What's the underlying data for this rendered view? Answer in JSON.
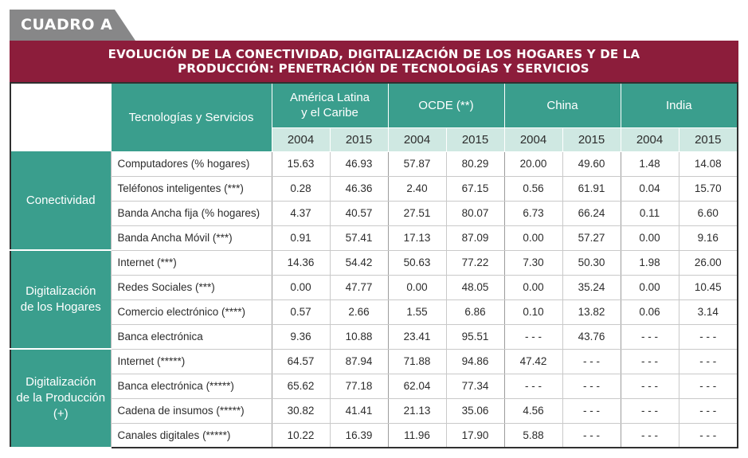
{
  "tag": "CUADRO A",
  "title": {
    "line1": "EVOLUCIÓN DE LA CONECTIVIDAD, DIGITALIZACIÓN DE LOS HOGARES Y DE LA",
    "line2": "PRODUCCIÓN: PENETRACIÓN DE TECNOLOGÍAS Y SERVICIOS"
  },
  "table": {
    "tech_header": "Tecnologías y Servicios",
    "regions": [
      {
        "line1": "América Latina",
        "line2": "y el Caribe"
      },
      {
        "line1": "OCDE (**)",
        "line2": ""
      },
      {
        "line1": "China",
        "line2": ""
      },
      {
        "line1": "India",
        "line2": ""
      }
    ],
    "years": [
      "2004",
      "2015",
      "2004",
      "2015",
      "2004",
      "2015",
      "2004",
      "2015"
    ],
    "groups": [
      {
        "label_lines": [
          "Conectividad"
        ],
        "rows": [
          {
            "name": "Computadores (% hogares)",
            "values": [
              "15.63",
              "46.93",
              "57.87",
              "80.29",
              "20.00",
              "49.60",
              "1.48",
              "14.08"
            ]
          },
          {
            "name": "Teléfonos inteligentes (***)",
            "values": [
              "0.28",
              "46.36",
              "2.40",
              "67.15",
              "0.56",
              "61.91",
              "0.04",
              "15.70"
            ]
          },
          {
            "name": "Banda Ancha fija (% hogares)",
            "values": [
              "4.37",
              "40.57",
              "27.51",
              "80.07",
              "6.73",
              "66.24",
              "0.11",
              "6.60"
            ]
          },
          {
            "name": "Banda Ancha Móvil (***)",
            "values": [
              "0.91",
              "57.41",
              "17.13",
              "87.09",
              "0.00",
              "57.27",
              "0.00",
              "9.16"
            ]
          }
        ]
      },
      {
        "label_lines": [
          "Digitalización",
          "de los Hogares"
        ],
        "rows": [
          {
            "name": "Internet (***)",
            "values": [
              "14.36",
              "54.42",
              "50.63",
              "77.22",
              "7.30",
              "50.30",
              "1.98",
              "26.00"
            ]
          },
          {
            "name": "Redes Sociales (***)",
            "values": [
              "0.00",
              "47.77",
              "0.00",
              "48.05",
              "0.00",
              "35.24",
              "0.00",
              "10.45"
            ]
          },
          {
            "name": "Comercio electrónico (****)",
            "values": [
              "0.57",
              "2.66",
              "1.55",
              "6.86",
              "0.10",
              "13.82",
              "0.06",
              "3.14"
            ]
          },
          {
            "name": "Banca electrónica",
            "values": [
              "9.36",
              "10.88",
              "23.41",
              "95.51",
              "- - -",
              "43.76",
              "- - -",
              "- - -"
            ]
          }
        ]
      },
      {
        "label_lines": [
          "Digitalización",
          "de la Producción",
          "(+)"
        ],
        "rows": [
          {
            "name": "Internet (*****)",
            "values": [
              "64.57",
              "87.94",
              "71.88",
              "94.86",
              "47.42",
              "- - -",
              "- - -",
              "- - -"
            ]
          },
          {
            "name": "Banca electrónica (*****)",
            "values": [
              "65.62",
              "77.18",
              "62.04",
              "77.34",
              "- - -",
              "- - -",
              "- - -",
              "- - -"
            ]
          },
          {
            "name": "Cadena de insumos (*****)",
            "values": [
              "30.82",
              "41.41",
              "21.13",
              "35.06",
              "4.56",
              "- - -",
              "- - -",
              "- - -"
            ]
          },
          {
            "name": "Canales digitales (*****)",
            "values": [
              "10.22",
              "16.39",
              "11.96",
              "17.90",
              "5.88",
              "- - -",
              "- - -",
              "- - -"
            ]
          }
        ]
      }
    ]
  }
}
